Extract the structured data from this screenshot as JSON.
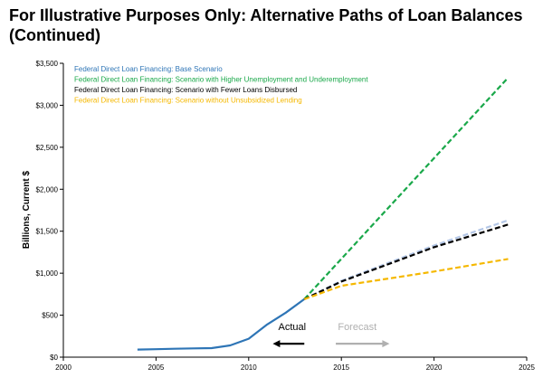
{
  "title": "For Illustrative Purposes Only: Alternative Paths of Loan Balances (Continued)",
  "chart_data": {
    "type": "line",
    "ylabel": "Billions, Current $",
    "xlim": [
      2000,
      2025
    ],
    "ylim": [
      0,
      3500
    ],
    "x_ticks": [
      2000,
      2005,
      2010,
      2015,
      2020,
      2025
    ],
    "x_tick_labels": [
      "2000",
      "2005",
      "2010",
      "2015",
      "2020",
      "2025"
    ],
    "y_ticks": [
      0,
      500,
      1000,
      1500,
      2000,
      2500,
      3000,
      3500
    ],
    "y_tick_labels": [
      "$0",
      "$500",
      "$1,000",
      "$1,500",
      "$2,000",
      "$2,500",
      "$3,000",
      "$3,500"
    ],
    "grid": false,
    "legend_position": "top-left",
    "series": [
      {
        "name": "Federal Direct Loan Financing: Base Scenario",
        "color": "#2e75b6",
        "style": "solid",
        "x": [
          2004,
          2005,
          2006,
          2007,
          2008,
          2009,
          2010,
          2011,
          2012,
          2013
        ],
        "y": [
          90,
          95,
          100,
          105,
          108,
          140,
          220,
          390,
          530,
          690
        ]
      },
      {
        "name": "Federal Direct Loan Financing: Base Scenario",
        "color": "#b4c7e7",
        "style": "dashed",
        "x": [
          2013,
          2015,
          2020,
          2024
        ],
        "y": [
          690,
          910,
          1330,
          1630
        ]
      },
      {
        "name": "Federal Direct Loan Financing: Scenario with Higher Unemployment and Underemployment",
        "color": "#1aa84a",
        "style": "dashed",
        "x": [
          2013,
          2024
        ],
        "y": [
          690,
          3330
        ]
      },
      {
        "name": "Federal Direct Loan Financing: Scenario with Fewer Loans Disbursed",
        "color": "#000000",
        "style": "dashed",
        "x": [
          2013,
          2015,
          2020,
          2024
        ],
        "y": [
          690,
          900,
          1310,
          1580
        ]
      },
      {
        "name": "Federal Direct Loan Financing: Scenario without Unsubsidized Lending",
        "color": "#f5b800",
        "style": "dashed",
        "x": [
          2013,
          2015,
          2020,
          2024
        ],
        "y": [
          690,
          850,
          1020,
          1170
        ]
      }
    ],
    "legend": [
      {
        "label": "Federal Direct Loan Financing: Base Scenario",
        "color": "#2e75b6"
      },
      {
        "label": "Federal Direct Loan Financing: Scenario with Higher Unemployment and Underemployment",
        "color": "#1aa84a"
      },
      {
        "label": "Federal Direct Loan Financing: Scenario with Fewer Loans Disbursed",
        "color": "#000000"
      },
      {
        "label": "Federal Direct Loan Financing: Scenario without Unsubsidized Lending",
        "color": "#f5b800"
      }
    ],
    "annotations": {
      "actual": {
        "label": "Actual",
        "color": "#000000",
        "arrow_from": 2013.0,
        "arrow_to": 2011.3,
        "y": 160
      },
      "forecast": {
        "label": "Forecast",
        "color": "#b0b0b0",
        "arrow_from": 2014.7,
        "arrow_to": 2017.6,
        "y": 160
      }
    }
  }
}
